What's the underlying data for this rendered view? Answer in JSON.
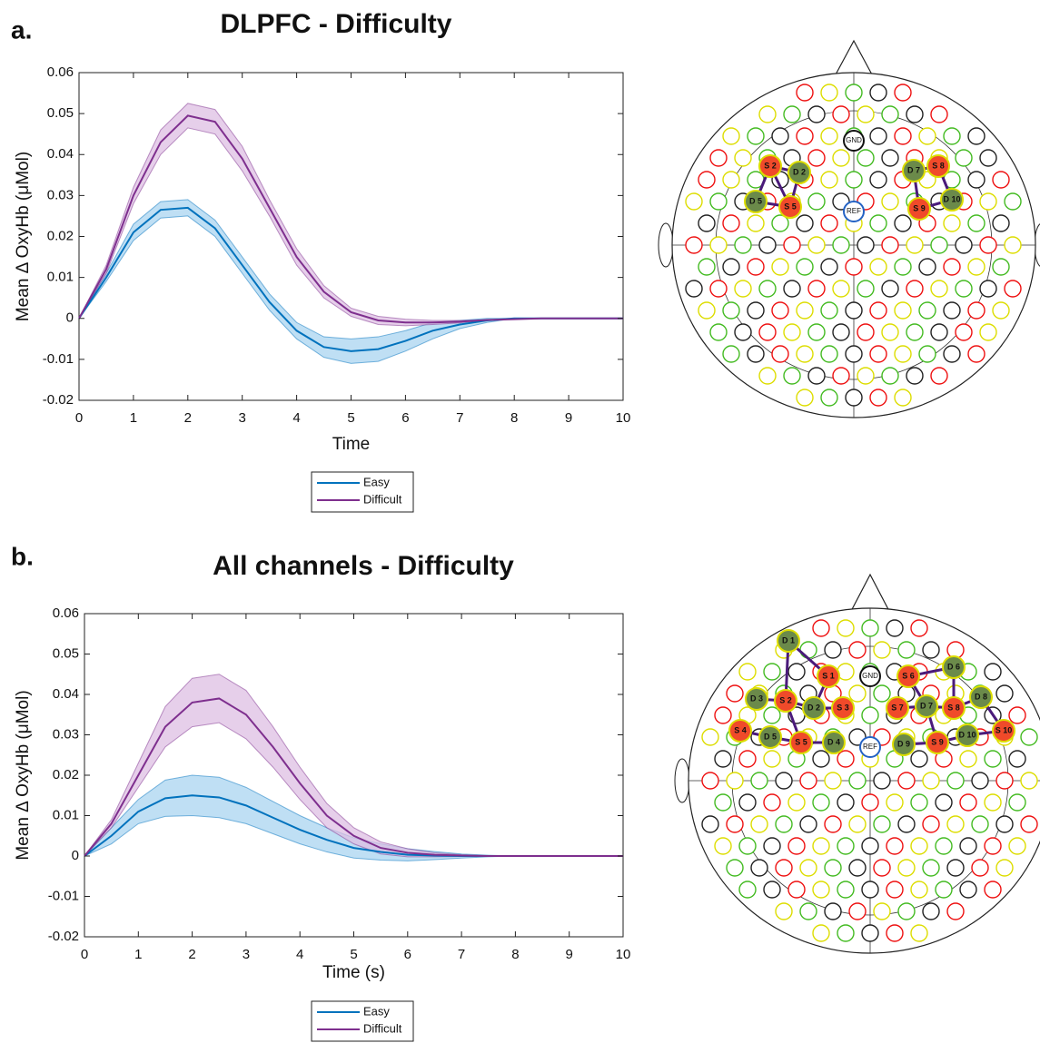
{
  "chart_data": [
    {
      "type": "line",
      "panel_label": "a.",
      "title": "DLPFC - Difficulty",
      "x_label": "Time",
      "y_label": "Mean Δ OxyHb (μMol)",
      "x": [
        0,
        0.5,
        1,
        1.5,
        2,
        2.5,
        3,
        3.5,
        4,
        4.5,
        5,
        5.5,
        6,
        6.5,
        7,
        7.5,
        8,
        8.5,
        9,
        9.5,
        10
      ],
      "series": [
        {
          "name": "Easy",
          "color": "#0072bd",
          "band_color": "#a9d4f0",
          "values": [
            0,
            0.01,
            0.021,
            0.0265,
            0.027,
            0.022,
            0.013,
            0.004,
            -0.003,
            -0.007,
            -0.008,
            -0.0075,
            -0.0055,
            -0.003,
            -0.0015,
            -0.0005,
            0,
            0,
            0,
            0,
            0
          ],
          "error": [
            0,
            0.001,
            0.002,
            0.002,
            0.002,
            0.002,
            0.002,
            0.002,
            0.002,
            0.0025,
            0.003,
            0.003,
            0.0025,
            0.002,
            0.001,
            0.0005,
            0,
            0,
            0,
            0,
            0
          ]
        },
        {
          "name": "Difficult",
          "color": "#7e2f8e",
          "band_color": "#ddbfe3",
          "values": [
            0,
            0.012,
            0.03,
            0.043,
            0.0495,
            0.048,
            0.039,
            0.027,
            0.015,
            0.0065,
            0.0015,
            -0.0005,
            -0.001,
            -0.001,
            -0.0008,
            -0.0004,
            -0.0002,
            0,
            0,
            0,
            0
          ],
          "error": [
            0,
            0.001,
            0.002,
            0.003,
            0.003,
            0.003,
            0.003,
            0.002,
            0.002,
            0.0015,
            0.001,
            0.001,
            0.0008,
            0.0005,
            0.0003,
            0,
            0,
            0,
            0,
            0,
            0
          ]
        }
      ],
      "xlim": [
        0,
        10
      ],
      "xticks": [
        0,
        1,
        2,
        3,
        4,
        5,
        6,
        7,
        8,
        9,
        10
      ],
      "ylim": [
        -0.02,
        0.06
      ],
      "yticks": [
        -0.02,
        -0.01,
        0,
        0.01,
        0.02,
        0.03,
        0.04,
        0.05,
        0.06
      ],
      "head_map": {
        "optodes": [
          "S 2",
          "D 2",
          "D 5",
          "S 5",
          "D 7",
          "S 8",
          "S 9",
          "D 10"
        ],
        "references": [
          "GND",
          "REF"
        ]
      }
    },
    {
      "type": "line",
      "panel_label": "b.",
      "title": "All channels - Difficulty",
      "x_label": "Time (s)",
      "y_label": "Mean Δ OxyHb (μMol)",
      "x": [
        0,
        0.5,
        1,
        1.5,
        2,
        2.5,
        3,
        3.5,
        4,
        4.5,
        5,
        5.5,
        6,
        6.5,
        7,
        7.5,
        8,
        8.5,
        9,
        9.5,
        10
      ],
      "series": [
        {
          "name": "Easy",
          "color": "#0072bd",
          "band_color": "#a9d4f0",
          "values": [
            0,
            0.005,
            0.011,
            0.0143,
            0.015,
            0.0145,
            0.0125,
            0.0095,
            0.0065,
            0.004,
            0.002,
            0.001,
            0.0003,
            0.0001,
            0,
            0,
            0,
            0,
            0,
            0,
            0
          ],
          "error": [
            0,
            0.002,
            0.003,
            0.0045,
            0.005,
            0.005,
            0.0045,
            0.004,
            0.0035,
            0.003,
            0.0025,
            0.002,
            0.0015,
            0.001,
            0.0005,
            0.0002,
            0,
            0,
            0,
            0,
            0
          ]
        },
        {
          "name": "Difficult",
          "color": "#7e2f8e",
          "band_color": "#ddbfe3",
          "values": [
            0,
            0.008,
            0.02,
            0.032,
            0.038,
            0.039,
            0.035,
            0.027,
            0.018,
            0.01,
            0.005,
            0.002,
            0.0008,
            0.0003,
            0.0001,
            0,
            0,
            0,
            0,
            0,
            0
          ],
          "error": [
            0,
            0.001,
            0.003,
            0.005,
            0.006,
            0.006,
            0.006,
            0.005,
            0.004,
            0.003,
            0.002,
            0.0015,
            0.001,
            0.0005,
            0.0002,
            0,
            0,
            0,
            0,
            0,
            0
          ]
        }
      ],
      "xlim": [
        0,
        10
      ],
      "xticks": [
        0,
        1,
        2,
        3,
        4,
        5,
        6,
        7,
        8,
        9,
        10
      ],
      "ylim": [
        -0.02,
        0.06
      ],
      "yticks": [
        -0.02,
        -0.01,
        0,
        0.01,
        0.02,
        0.03,
        0.04,
        0.05,
        0.06
      ],
      "head_map": {
        "optodes": [
          "D 1",
          "S 1",
          "D 3",
          "S 2",
          "D 2",
          "S 3",
          "S 4",
          "D 5",
          "S 5",
          "D 4",
          "S 6",
          "D 6",
          "S 7",
          "D 7",
          "S 8",
          "D 8",
          "S 10",
          "D 10",
          "S 9",
          "D 9"
        ],
        "references": [
          "GND",
          "REF"
        ]
      }
    }
  ]
}
